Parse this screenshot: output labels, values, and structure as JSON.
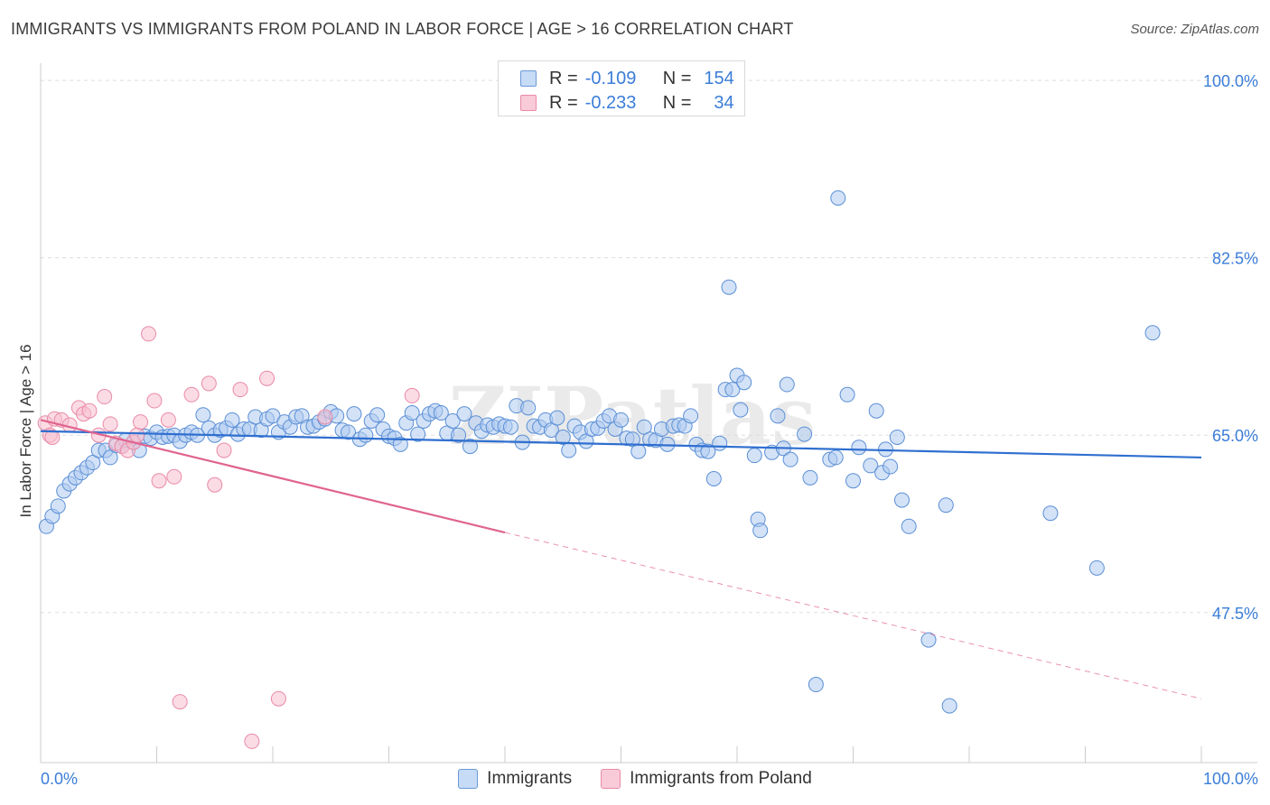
{
  "header": {
    "title": "IMMIGRANTS VS IMMIGRANTS FROM POLAND IN LABOR FORCE | AGE > 16 CORRELATION CHART",
    "source": "Source: ZipAtlas.com"
  },
  "legend_top": {
    "rows": [
      {
        "r_label": "R =",
        "r_value": "-0.109",
        "n_label": "N =",
        "n_value": "154"
      },
      {
        "r_label": "R =",
        "r_value": "-0.233",
        "n_label": "N =",
        "n_value": "34"
      }
    ]
  },
  "legend_bottom": {
    "items": [
      "Immigrants",
      "Immigrants from Poland"
    ]
  },
  "colors": {
    "blue_fill": "#aecbf0",
    "blue_stroke": "#5b8fd6",
    "blue_line": "#2f6fd0",
    "pink_fill": "#f7bfd0",
    "pink_stroke": "#e98aa7",
    "pink_line": "#e0648f",
    "tick_label": "#3b7dd8",
    "grid": "#dddddd"
  },
  "chart_data": {
    "type": "scatter",
    "title": "IMMIGRANTS VS IMMIGRANTS FROM POLAND IN LABOR FORCE | AGE > 16 CORRELATION CHART",
    "xlabel": "",
    "ylabel": "In Labor Force | Age > 16",
    "xlim": [
      0,
      100
    ],
    "ylim": [
      32.7,
      101.7
    ],
    "x_tick_labels": [
      "0.0%",
      "100.0%"
    ],
    "y_ticks": [
      47.5,
      65.0,
      82.5,
      100.0
    ],
    "y_tick_labels": [
      "47.5%",
      "65.0%",
      "82.5%",
      "100.0%"
    ],
    "grid": "horizontal dashed",
    "watermark": "ZIPatlas",
    "series": [
      {
        "name": "Immigrants",
        "r": -0.109,
        "n": 154,
        "trend": {
          "x0": 0,
          "y0": 65.4,
          "x1": 100,
          "y1": 62.8
        },
        "points": [
          [
            0.5,
            56.0
          ],
          [
            1.0,
            57.0
          ],
          [
            1.5,
            58.0
          ],
          [
            2.0,
            59.5
          ],
          [
            2.5,
            60.2
          ],
          [
            3.0,
            60.8
          ],
          [
            3.5,
            61.3
          ],
          [
            4.0,
            61.8
          ],
          [
            4.5,
            62.3
          ],
          [
            5.0,
            63.5
          ],
          [
            5.6,
            63.5
          ],
          [
            6.0,
            62.8
          ],
          [
            6.5,
            64.0
          ],
          [
            7.0,
            63.9
          ],
          [
            7.3,
            64.5
          ],
          [
            8.0,
            64.3
          ],
          [
            8.5,
            63.5
          ],
          [
            9.0,
            64.9
          ],
          [
            9.5,
            64.7
          ],
          [
            10.0,
            65.3
          ],
          [
            10.5,
            64.8
          ],
          [
            11.0,
            64.9
          ],
          [
            11.5,
            65.0
          ],
          [
            12.0,
            64.4
          ],
          [
            12.5,
            65.0
          ],
          [
            13.0,
            65.3
          ],
          [
            13.5,
            65.0
          ],
          [
            14.0,
            67.0
          ],
          [
            14.5,
            65.7
          ],
          [
            15.0,
            65.0
          ],
          [
            15.5,
            65.5
          ],
          [
            16.0,
            65.7
          ],
          [
            16.5,
            66.5
          ],
          [
            17.0,
            65.1
          ],
          [
            17.5,
            65.6
          ],
          [
            18.0,
            65.6
          ],
          [
            18.5,
            66.8
          ],
          [
            19.0,
            65.5
          ],
          [
            19.5,
            66.6
          ],
          [
            20.0,
            66.9
          ],
          [
            20.5,
            65.3
          ],
          [
            21.0,
            66.3
          ],
          [
            21.5,
            65.8
          ],
          [
            22.0,
            66.8
          ],
          [
            22.5,
            66.9
          ],
          [
            23.0,
            65.8
          ],
          [
            23.5,
            65.9
          ],
          [
            24.0,
            66.3
          ],
          [
            24.5,
            66.6
          ],
          [
            25.0,
            67.3
          ],
          [
            25.5,
            66.9
          ],
          [
            26.0,
            65.5
          ],
          [
            26.5,
            65.3
          ],
          [
            27.0,
            67.1
          ],
          [
            27.5,
            64.6
          ],
          [
            28.0,
            65.0
          ],
          [
            28.5,
            66.4
          ],
          [
            29.0,
            67.0
          ],
          [
            29.5,
            65.6
          ],
          [
            30.0,
            64.9
          ],
          [
            30.5,
            64.7
          ],
          [
            31.0,
            64.1
          ],
          [
            31.5,
            66.2
          ],
          [
            32.0,
            67.2
          ],
          [
            32.5,
            65.1
          ],
          [
            33.0,
            66.4
          ],
          [
            33.5,
            67.1
          ],
          [
            34.0,
            67.4
          ],
          [
            34.5,
            67.2
          ],
          [
            35.0,
            65.2
          ],
          [
            35.5,
            66.4
          ],
          [
            36.0,
            65.0
          ],
          [
            36.5,
            67.1
          ],
          [
            37.0,
            63.9
          ],
          [
            37.5,
            66.2
          ],
          [
            38.0,
            65.4
          ],
          [
            38.5,
            66.0
          ],
          [
            39.0,
            65.8
          ],
          [
            39.5,
            66.1
          ],
          [
            40.0,
            65.9
          ],
          [
            40.5,
            65.8
          ],
          [
            41.0,
            67.9
          ],
          [
            41.5,
            64.3
          ],
          [
            42.0,
            67.7
          ],
          [
            42.5,
            65.9
          ],
          [
            43.0,
            65.8
          ],
          [
            43.5,
            66.5
          ],
          [
            44.0,
            65.5
          ],
          [
            44.5,
            66.7
          ],
          [
            45.0,
            64.8
          ],
          [
            45.5,
            63.5
          ],
          [
            46.0,
            65.9
          ],
          [
            46.5,
            65.3
          ],
          [
            47.0,
            64.4
          ],
          [
            47.5,
            65.6
          ],
          [
            48.0,
            65.7
          ],
          [
            48.5,
            66.4
          ],
          [
            49.0,
            66.9
          ],
          [
            49.5,
            65.6
          ],
          [
            50.0,
            66.5
          ],
          [
            50.5,
            64.7
          ],
          [
            51.0,
            64.6
          ],
          [
            51.5,
            63.4
          ],
          [
            52.0,
            65.8
          ],
          [
            52.5,
            64.6
          ],
          [
            53.0,
            64.5
          ],
          [
            53.5,
            65.6
          ],
          [
            54.0,
            64.1
          ],
          [
            54.5,
            65.9
          ],
          [
            55.0,
            66.0
          ],
          [
            55.5,
            65.9
          ],
          [
            56.0,
            66.9
          ],
          [
            56.5,
            64.1
          ],
          [
            57.0,
            63.5
          ],
          [
            57.5,
            63.4
          ],
          [
            58.0,
            60.7
          ],
          [
            58.5,
            64.2
          ],
          [
            59.0,
            69.5
          ],
          [
            59.3,
            79.6
          ],
          [
            59.6,
            69.5
          ],
          [
            60.0,
            70.9
          ],
          [
            60.3,
            67.5
          ],
          [
            60.6,
            70.2
          ],
          [
            61.5,
            63.0
          ],
          [
            61.8,
            56.7
          ],
          [
            62.0,
            55.6
          ],
          [
            63.0,
            63.3
          ],
          [
            63.5,
            66.9
          ],
          [
            64.0,
            63.7
          ],
          [
            64.3,
            70.0
          ],
          [
            64.6,
            62.6
          ],
          [
            65.8,
            65.1
          ],
          [
            66.3,
            60.8
          ],
          [
            66.8,
            40.4
          ],
          [
            68.0,
            62.6
          ],
          [
            68.5,
            62.8
          ],
          [
            68.7,
            88.4
          ],
          [
            69.5,
            69.0
          ],
          [
            70.0,
            60.5
          ],
          [
            70.5,
            63.8
          ],
          [
            71.5,
            62.0
          ],
          [
            72.0,
            67.4
          ],
          [
            72.5,
            61.3
          ],
          [
            72.8,
            63.6
          ],
          [
            73.2,
            61.9
          ],
          [
            73.8,
            64.8
          ],
          [
            74.2,
            58.6
          ],
          [
            74.8,
            56.0
          ],
          [
            76.5,
            44.8
          ],
          [
            78.0,
            58.1
          ],
          [
            78.3,
            38.3
          ],
          [
            87.0,
            57.3
          ],
          [
            91.0,
            51.9
          ],
          [
            95.8,
            75.1
          ]
        ]
      },
      {
        "name": "Immigrants from Poland",
        "r": -0.233,
        "n": 34,
        "trend": {
          "x0": 0,
          "y0": 66.5,
          "x1": 40,
          "y1": 55.4,
          "dash_to_x": 100,
          "dash_to_y": 39.0
        },
        "points": [
          [
            0.4,
            66.2
          ],
          [
            0.8,
            65.0
          ],
          [
            1.0,
            64.8
          ],
          [
            1.2,
            66.6
          ],
          [
            1.8,
            66.5
          ],
          [
            2.5,
            66.0
          ],
          [
            3.3,
            67.7
          ],
          [
            3.7,
            67.1
          ],
          [
            4.2,
            67.4
          ],
          [
            5.0,
            65.0
          ],
          [
            5.5,
            68.8
          ],
          [
            6.0,
            66.1
          ],
          [
            6.5,
            64.2
          ],
          [
            7.0,
            63.9
          ],
          [
            7.5,
            63.5
          ],
          [
            8.0,
            64.3
          ],
          [
            8.3,
            65.0
          ],
          [
            8.6,
            66.3
          ],
          [
            9.3,
            75.0
          ],
          [
            9.8,
            68.4
          ],
          [
            10.2,
            60.5
          ],
          [
            11.0,
            66.5
          ],
          [
            11.5,
            60.9
          ],
          [
            12.0,
            38.7
          ],
          [
            13.0,
            69.0
          ],
          [
            14.5,
            70.1
          ],
          [
            15.0,
            60.1
          ],
          [
            15.8,
            63.5
          ],
          [
            17.2,
            69.5
          ],
          [
            18.2,
            34.8
          ],
          [
            19.5,
            70.6
          ],
          [
            20.5,
            39.0
          ],
          [
            24.5,
            66.8
          ],
          [
            32.0,
            68.9
          ]
        ]
      }
    ]
  }
}
